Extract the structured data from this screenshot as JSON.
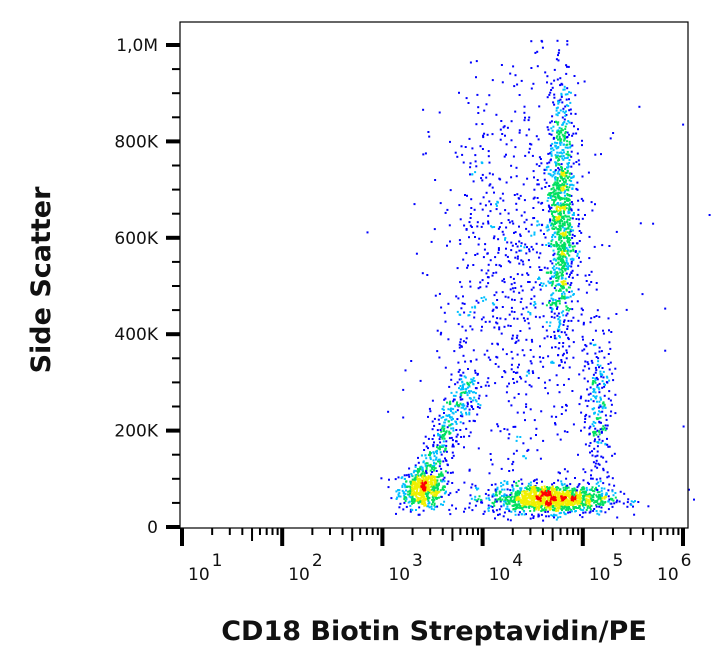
{
  "chart_data": {
    "type": "scatter",
    "subtype": "flow-cytometry density plot",
    "xlabel": "CD18 Biotin Streptavidin/PE",
    "ylabel": "Side Scatter",
    "xscale": "log",
    "xlim": [
      10,
      1100000
    ],
    "ylim": [
      0,
      1050000
    ],
    "x_ticks": [
      {
        "value": 10,
        "base": "10",
        "exp": "1"
      },
      {
        "value": 100,
        "base": "10",
        "exp": "2"
      },
      {
        "value": 1000,
        "base": "10",
        "exp": "3"
      },
      {
        "value": 10000,
        "base": "10",
        "exp": "4"
      },
      {
        "value": 100000,
        "base": "10",
        "exp": "5"
      },
      {
        "value": 1000000,
        "base": "10",
        "exp": "6"
      }
    ],
    "y_ticks": [
      {
        "value": 0,
        "label": "0"
      },
      {
        "value": 200000,
        "label": "200K"
      },
      {
        "value": 400000,
        "label": "400K"
      },
      {
        "value": 600000,
        "label": "600K"
      },
      {
        "value": 800000,
        "label": "800K"
      },
      {
        "value": 1000000,
        "label": "1,0M"
      }
    ],
    "grid": false,
    "colormap": [
      "#0000ff",
      "#00bfff",
      "#00e060",
      "#f0f000",
      "#ff0000"
    ],
    "populations": [
      {
        "center_x": 2500,
        "center_y": 80000,
        "spread_log_x": 0.12,
        "spread_y": 20000,
        "events": 500
      },
      {
        "streak_from": [
          2200,
          70000
        ],
        "streak_to": [
          7000,
          300000
        ],
        "events": 400
      },
      {
        "center_x": 45000,
        "center_y": 60000,
        "spread_log_x": 0.3,
        "spread_y": 15000,
        "events": 1300
      },
      {
        "center_x": 60000,
        "center_y": 650000,
        "spread_log_x": 0.07,
        "spread_y": 130000,
        "events": 1000
      },
      {
        "center_x": 20000,
        "center_y": 500000,
        "spread_log_x": 0.4,
        "spread_y": 230000,
        "events": 900
      },
      {
        "center_x": 140000,
        "center_y": 250000,
        "spread_log_x": 0.08,
        "spread_y": 90000,
        "events": 250
      }
    ]
  }
}
